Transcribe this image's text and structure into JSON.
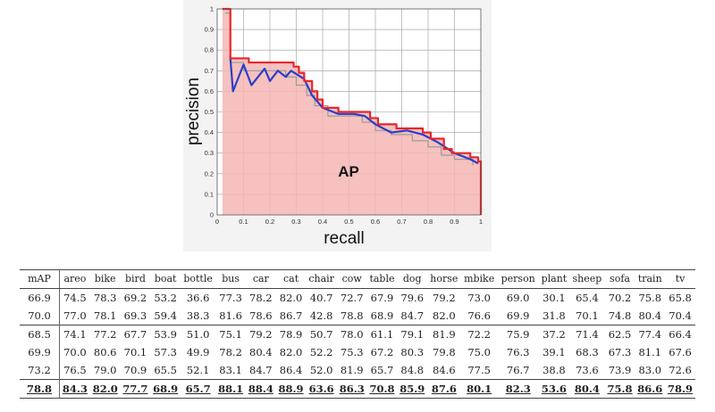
{
  "colors": {
    "ap_fill": "#f4b6b4",
    "red_line": "#e8262a",
    "blue_line": "#2a3fc8",
    "gray_line": "#9a9a9a",
    "grid": "#9a9aa0"
  },
  "chart_data": {
    "type": "line",
    "xlabel": "recall",
    "ylabel": "precision",
    "xlim": [
      0,
      1
    ],
    "ylim": [
      0,
      1
    ],
    "x_ticks": [
      "0",
      "0.1",
      "0.2",
      "0.3",
      "0.4",
      "0.5",
      "0.6",
      "0.7",
      "0.8",
      "0.9",
      "1"
    ],
    "y_ticks": [
      "0",
      "0.1",
      "0.2",
      "0.3",
      "0.4",
      "0.5",
      "0.6",
      "0.7",
      "0.8",
      "0.9",
      "1"
    ],
    "grid": true,
    "annotation": "AP",
    "series": [
      {
        "style": "red",
        "points": [
          [
            0.02,
            1
          ],
          [
            0.05,
            1
          ],
          [
            0.05,
            0.76
          ],
          [
            0.12,
            0.76
          ],
          [
            0.12,
            0.74
          ],
          [
            0.29,
            0.74
          ],
          [
            0.29,
            0.72
          ],
          [
            0.31,
            0.72
          ],
          [
            0.31,
            0.69
          ],
          [
            0.33,
            0.69
          ],
          [
            0.33,
            0.65
          ],
          [
            0.36,
            0.65
          ],
          [
            0.36,
            0.6
          ],
          [
            0.38,
            0.6
          ],
          [
            0.38,
            0.56
          ],
          [
            0.4,
            0.56
          ],
          [
            0.4,
            0.52
          ],
          [
            0.46,
            0.52
          ],
          [
            0.46,
            0.5
          ],
          [
            0.58,
            0.5
          ],
          [
            0.58,
            0.47
          ],
          [
            0.61,
            0.47
          ],
          [
            0.61,
            0.44
          ],
          [
            0.68,
            0.44
          ],
          [
            0.68,
            0.42
          ],
          [
            0.78,
            0.42
          ],
          [
            0.78,
            0.4
          ],
          [
            0.81,
            0.4
          ],
          [
            0.81,
            0.37
          ],
          [
            0.86,
            0.37
          ],
          [
            0.86,
            0.32
          ],
          [
            0.89,
            0.32
          ],
          [
            0.89,
            0.3
          ],
          [
            0.96,
            0.3
          ],
          [
            0.96,
            0.28
          ],
          [
            0.99,
            0.28
          ],
          [
            0.99,
            0.26
          ],
          [
            1.0,
            0.26
          ],
          [
            1.0,
            0.0
          ]
        ]
      },
      {
        "style": "blue",
        "points": [
          [
            0.05,
            0.76
          ],
          [
            0.06,
            0.6
          ],
          [
            0.1,
            0.73
          ],
          [
            0.13,
            0.63
          ],
          [
            0.18,
            0.71
          ],
          [
            0.2,
            0.65
          ],
          [
            0.23,
            0.7
          ],
          [
            0.26,
            0.67
          ],
          [
            0.28,
            0.7
          ],
          [
            0.33,
            0.66
          ],
          [
            0.36,
            0.58
          ],
          [
            0.4,
            0.52
          ],
          [
            0.44,
            0.5
          ],
          [
            0.46,
            0.49
          ],
          [
            0.52,
            0.49
          ],
          [
            0.56,
            0.48
          ],
          [
            0.6,
            0.44
          ],
          [
            0.66,
            0.4
          ],
          [
            0.72,
            0.41
          ],
          [
            0.78,
            0.39
          ],
          [
            0.84,
            0.35
          ],
          [
            0.9,
            0.3
          ],
          [
            0.96,
            0.27
          ],
          [
            0.99,
            0.25
          ]
        ]
      },
      {
        "style": "gray",
        "points": [
          [
            0.03,
            0.98
          ],
          [
            0.05,
            0.98
          ],
          [
            0.05,
            0.74
          ],
          [
            0.1,
            0.74
          ],
          [
            0.1,
            0.7
          ],
          [
            0.26,
            0.7
          ],
          [
            0.26,
            0.67
          ],
          [
            0.3,
            0.67
          ],
          [
            0.3,
            0.63
          ],
          [
            0.34,
            0.63
          ],
          [
            0.34,
            0.58
          ],
          [
            0.37,
            0.58
          ],
          [
            0.37,
            0.53
          ],
          [
            0.42,
            0.53
          ],
          [
            0.42,
            0.48
          ],
          [
            0.55,
            0.48
          ],
          [
            0.55,
            0.45
          ],
          [
            0.6,
            0.45
          ],
          [
            0.6,
            0.41
          ],
          [
            0.66,
            0.41
          ],
          [
            0.66,
            0.39
          ],
          [
            0.74,
            0.39
          ],
          [
            0.74,
            0.36
          ],
          [
            0.8,
            0.36
          ],
          [
            0.8,
            0.33
          ],
          [
            0.85,
            0.33
          ],
          [
            0.85,
            0.29
          ],
          [
            0.9,
            0.29
          ],
          [
            0.9,
            0.27
          ],
          [
            0.97,
            0.27
          ],
          [
            0.97,
            0.24
          ]
        ]
      }
    ]
  },
  "table": {
    "headers": [
      "mAP",
      "areo",
      "bike",
      "bird",
      "boat",
      "bottle",
      "bus",
      "car",
      "cat",
      "chair",
      "cow",
      "table",
      "dog",
      "horse",
      "mbike",
      "person",
      "plant",
      "sheep",
      "sofa",
      "train",
      "tv"
    ],
    "rows": [
      [
        "66.9",
        "74.5",
        "78.3",
        "69.2",
        "53.2",
        "36.6",
        "77.3",
        "78.2",
        "82.0",
        "40.7",
        "72.7",
        "67.9",
        "79.6",
        "79.2",
        "73.0",
        "69.0",
        "30.1",
        "65.4",
        "70.2",
        "75.8",
        "65.8"
      ],
      [
        "70.0",
        "77.0",
        "78.1",
        "69.3",
        "59.4",
        "38.3",
        "81.6",
        "78.6",
        "86.7",
        "42.8",
        "78.8",
        "68.9",
        "84.7",
        "82.0",
        "76.6",
        "69.9",
        "31.8",
        "70.1",
        "74.8",
        "80.4",
        "70.4"
      ],
      [
        "68.5",
        "74.1",
        "77.2",
        "67.7",
        "53.9",
        "51.0",
        "75.1",
        "79.2",
        "78.9",
        "50.7",
        "78.0",
        "61.1",
        "79.1",
        "81.9",
        "72.2",
        "75.9",
        "37.2",
        "71.4",
        "62.5",
        "77.4",
        "66.4"
      ],
      [
        "69.9",
        "70.0",
        "80.6",
        "70.1",
        "57.3",
        "49.9",
        "78.2",
        "80.4",
        "82.0",
        "52.2",
        "75.3",
        "67.2",
        "80.3",
        "79.8",
        "75.0",
        "76.3",
        "39.1",
        "68.3",
        "67.3",
        "81.1",
        "67.6"
      ],
      [
        "73.2",
        "76.5",
        "79.0",
        "70.9",
        "65.5",
        "52.1",
        "83.1",
        "84.7",
        "86.4",
        "52.0",
        "81.9",
        "65.7",
        "84.8",
        "84.6",
        "77.5",
        "76.7",
        "38.8",
        "73.6",
        "73.9",
        "83.0",
        "72.6"
      ],
      [
        "78.8",
        "84.3",
        "82.0",
        "77.7",
        "68.9",
        "65.7",
        "88.1",
        "88.4",
        "88.9",
        "63.6",
        "86.3",
        "70.8",
        "85.9",
        "87.6",
        "80.1",
        "82.3",
        "53.6",
        "80.4",
        "75.8",
        "86.6",
        "78.9"
      ]
    ]
  }
}
